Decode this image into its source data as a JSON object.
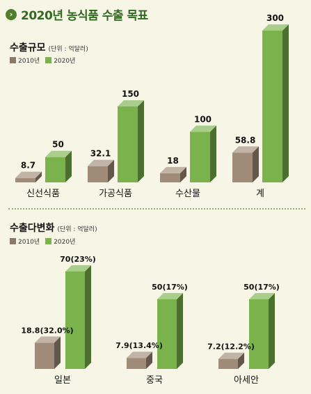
{
  "page_title": "2020년 농식품 수출 목표",
  "colors": {
    "y2010": "#a08b78",
    "y2020": "#7ab24c",
    "title": "#2f6a1e"
  },
  "chart_data": [
    {
      "type": "bar",
      "title": "수출규모",
      "unit": "(단위 : 억달러)",
      "legend_position": "top-left",
      "grid": false,
      "ylim": [
        0,
        300
      ],
      "categories": [
        "신선식품",
        "가공식품",
        "수산물",
        "계"
      ],
      "series": [
        {
          "name": "2010년",
          "values": [
            8.7,
            32.1,
            18,
            58.8
          ],
          "labels": [
            "8.7",
            "32.1",
            "18",
            "58.8"
          ]
        },
        {
          "name": "2020년",
          "values": [
            50,
            150,
            100,
            300
          ],
          "labels": [
            "50",
            "150",
            "100",
            "300"
          ]
        }
      ]
    },
    {
      "type": "bar",
      "title": "수출다변화",
      "unit": "(단위 : 억달러)",
      "legend_position": "top-left",
      "grid": false,
      "ylim": [
        0,
        70
      ],
      "categories": [
        "일본",
        "중국",
        "아세안"
      ],
      "series": [
        {
          "name": "2010년",
          "values": [
            18.8,
            7.9,
            7.2
          ],
          "labels": [
            "18.8(32.0%)",
            "7.9(13.4%)",
            "7.2(12.2%)"
          ]
        },
        {
          "name": "2020년",
          "values": [
            70,
            50,
            50
          ],
          "labels": [
            "70(23%)",
            "50(17%)",
            "50(17%)"
          ]
        }
      ]
    }
  ]
}
